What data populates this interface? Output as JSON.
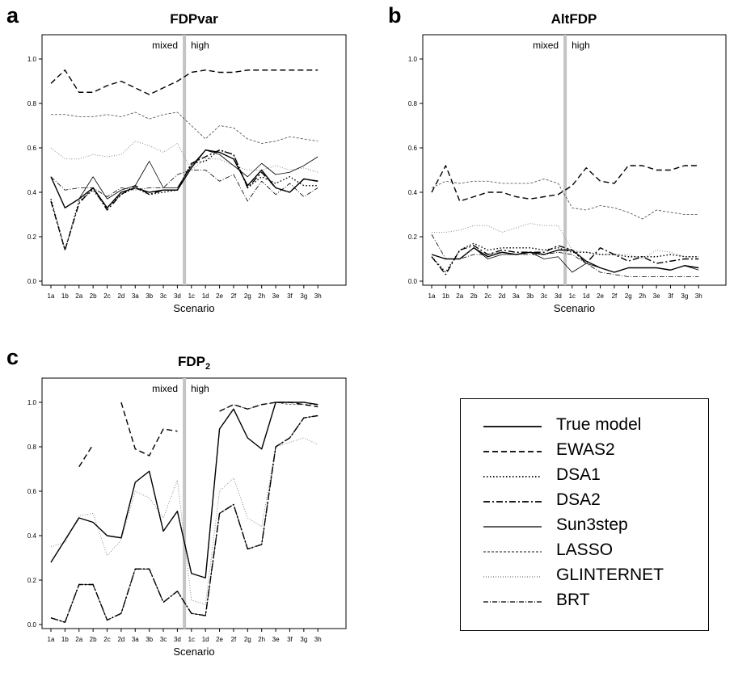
{
  "scenarios": [
    "1a",
    "1b",
    "2a",
    "2b",
    "2c",
    "2d",
    "3a",
    "3b",
    "3c",
    "3d",
    "1c",
    "1d",
    "2e",
    "2f",
    "2g",
    "2h",
    "3e",
    "3f",
    "3g",
    "3h"
  ],
  "legend": [
    {
      "key": "true_model",
      "label": "True model",
      "dash": "",
      "width": 1.4,
      "color": "#000000"
    },
    {
      "key": "ewas2",
      "label": "EWAS2",
      "dash": "7,4",
      "width": 1.4,
      "color": "#000000"
    },
    {
      "key": "dsa1",
      "label": "DSA1",
      "dash": "1.5,2.5",
      "width": 1.4,
      "color": "#000000"
    },
    {
      "key": "dsa2",
      "label": "DSA2",
      "dash": "8,3,2,3",
      "width": 1.4,
      "color": "#000000"
    },
    {
      "key": "sun3step",
      "label": "Sun3step",
      "dash": "",
      "width": 0.8,
      "color": "#000000"
    },
    {
      "key": "lasso",
      "label": "LASSO",
      "dash": "3,2",
      "width": 0.8,
      "color": "#444444"
    },
    {
      "key": "glinternet",
      "label": "GLINTERNET",
      "dash": "1,2",
      "width": 1.0,
      "color": "#8a8a8a"
    },
    {
      "key": "brt",
      "label": "BRT",
      "dash": "6,2,1,2",
      "width": 0.8,
      "color": "#000000"
    }
  ],
  "chart_data": [
    {
      "type": "line",
      "panel_letter": "a",
      "title": "FDPvar",
      "title_sub": "",
      "xlabel": "Scenario",
      "ylabel": "",
      "ylim": [
        0,
        1
      ],
      "yticks": [
        "0.0",
        "0.2",
        "0.4",
        "0.6",
        "0.8",
        "1.0"
      ],
      "divider_after": "3d",
      "region_labels": [
        "mixed",
        "high"
      ],
      "grid": false,
      "series": [
        {
          "name": "True model",
          "values": [
            0.47,
            0.33,
            0.37,
            0.42,
            0.33,
            0.4,
            0.42,
            0.4,
            0.41,
            0.41,
            0.51,
            0.59,
            0.58,
            0.55,
            0.43,
            0.5,
            0.42,
            0.4,
            0.46,
            0.45
          ]
        },
        {
          "name": "EWAS2",
          "values": [
            0.89,
            0.95,
            0.85,
            0.85,
            0.88,
            0.9,
            0.87,
            0.84,
            0.87,
            0.9,
            0.94,
            0.95,
            0.94,
            0.94,
            0.95,
            0.95,
            0.95,
            0.95,
            0.95,
            0.95
          ]
        },
        {
          "name": "DSA1",
          "values": [
            0.37,
            0.14,
            0.36,
            0.41,
            0.33,
            0.39,
            0.42,
            0.39,
            0.4,
            0.41,
            0.53,
            0.54,
            0.59,
            0.57,
            0.42,
            0.47,
            0.44,
            0.47,
            0.43,
            0.43
          ]
        },
        {
          "name": "DSA2",
          "values": [
            0.36,
            0.14,
            0.35,
            0.42,
            0.32,
            0.39,
            0.43,
            0.39,
            0.41,
            0.41,
            0.53,
            0.56,
            0.59,
            0.57,
            0.42,
            0.49,
            0.42,
            0.4,
            0.46,
            0.45
          ]
        },
        {
          "name": "Sun3step",
          "values": [
            0.47,
            0.33,
            0.37,
            0.47,
            0.37,
            0.41,
            0.43,
            0.54,
            0.42,
            0.42,
            0.52,
            0.59,
            0.57,
            0.52,
            0.47,
            0.53,
            0.48,
            0.49,
            0.52,
            0.56
          ]
        },
        {
          "name": "LASSO",
          "values": [
            0.75,
            0.75,
            0.74,
            0.74,
            0.75,
            0.74,
            0.76,
            0.73,
            0.75,
            0.76,
            0.7,
            0.64,
            0.7,
            0.69,
            0.64,
            0.62,
            0.63,
            0.65,
            0.64,
            0.63
          ]
        },
        {
          "name": "GLINTERNET",
          "values": [
            0.6,
            0.55,
            0.55,
            0.57,
            0.56,
            0.57,
            0.63,
            0.61,
            0.58,
            0.62,
            0.5,
            0.55,
            0.55,
            0.52,
            0.5,
            0.5,
            0.52,
            0.5,
            0.51,
            0.49
          ]
        },
        {
          "name": "BRT",
          "values": [
            0.47,
            0.41,
            0.42,
            0.42,
            0.38,
            0.42,
            0.41,
            0.42,
            0.42,
            0.48,
            0.5,
            0.5,
            0.45,
            0.48,
            0.36,
            0.45,
            0.39,
            0.44,
            0.38,
            0.42
          ]
        }
      ]
    },
    {
      "type": "line",
      "panel_letter": "b",
      "title": "AltFDP",
      "title_sub": "",
      "xlabel": "Scenario",
      "ylabel": "",
      "ylim": [
        0,
        1
      ],
      "yticks": [
        "0.0",
        "0.2",
        "0.4",
        "0.6",
        "0.8",
        "1.0"
      ],
      "divider_after": "3d",
      "region_labels": [
        "mixed",
        "high"
      ],
      "grid": false,
      "series": [
        {
          "name": "True model",
          "values": [
            0.12,
            0.1,
            0.1,
            0.15,
            0.11,
            0.13,
            0.12,
            0.13,
            0.12,
            0.14,
            0.14,
            0.09,
            0.06,
            0.04,
            0.06,
            0.06,
            0.06,
            0.05,
            0.07,
            0.06
          ]
        },
        {
          "name": "EWAS2",
          "values": [
            0.4,
            0.52,
            0.36,
            0.38,
            0.4,
            0.4,
            0.38,
            0.37,
            0.38,
            0.39,
            0.43,
            0.51,
            0.45,
            0.44,
            0.52,
            0.52,
            0.5,
            0.5,
            0.52,
            0.52
          ]
        },
        {
          "name": "DSA1",
          "values": [
            0.11,
            0.04,
            0.14,
            0.17,
            0.14,
            0.15,
            0.15,
            0.15,
            0.14,
            0.15,
            0.13,
            0.13,
            0.12,
            0.12,
            0.11,
            0.11,
            0.11,
            0.12,
            0.11,
            0.11
          ]
        },
        {
          "name": "DSA2",
          "values": [
            0.11,
            0.03,
            0.14,
            0.16,
            0.12,
            0.14,
            0.13,
            0.13,
            0.13,
            0.16,
            0.14,
            0.08,
            0.15,
            0.12,
            0.09,
            0.11,
            0.08,
            0.09,
            0.1,
            0.1
          ]
        },
        {
          "name": "Sun3step",
          "values": [
            0.12,
            0.1,
            0.1,
            0.15,
            0.1,
            0.12,
            0.12,
            0.13,
            0.1,
            0.11,
            0.04,
            0.08,
            0.06,
            0.04,
            0.06,
            0.06,
            0.06,
            0.05,
            0.07,
            0.05
          ]
        },
        {
          "name": "LASSO",
          "values": [
            0.42,
            0.45,
            0.44,
            0.45,
            0.45,
            0.44,
            0.44,
            0.44,
            0.46,
            0.44,
            0.33,
            0.32,
            0.34,
            0.33,
            0.31,
            0.28,
            0.32,
            0.31,
            0.3,
            0.3
          ]
        },
        {
          "name": "GLINTERNET",
          "values": [
            0.22,
            0.22,
            0.23,
            0.25,
            0.25,
            0.22,
            0.24,
            0.26,
            0.25,
            0.25,
            0.14,
            0.13,
            0.12,
            0.12,
            0.12,
            0.1,
            0.14,
            0.13,
            0.11,
            0.11
          ]
        },
        {
          "name": "BRT",
          "values": [
            0.21,
            0.1,
            0.1,
            0.12,
            0.12,
            0.13,
            0.12,
            0.12,
            0.12,
            0.13,
            0.12,
            0.08,
            0.04,
            0.03,
            0.02,
            0.02,
            0.02,
            0.02,
            0.02,
            0.02
          ]
        }
      ]
    },
    {
      "type": "line",
      "panel_letter": "c",
      "title": "FDP",
      "title_sub": "2",
      "xlabel": "Scenario",
      "ylabel": "",
      "ylim": [
        0,
        1
      ],
      "yticks": [
        "0.0",
        "0.2",
        "0.4",
        "0.6",
        "0.8",
        "1.0"
      ],
      "divider_after": "3d",
      "region_labels": [
        "mixed",
        "high"
      ],
      "grid": false,
      "series": [
        {
          "name": "True model",
          "values": [
            0.28,
            0.38,
            0.48,
            0.46,
            0.4,
            0.39,
            0.64,
            0.69,
            0.42,
            0.51,
            0.23,
            0.21,
            0.88,
            0.97,
            0.84,
            0.79,
            1.0,
            1.0,
            1.0,
            0.99
          ]
        },
        {
          "name": "EWAS2",
          "values": [
            null,
            null,
            0.71,
            0.81,
            null,
            1.0,
            0.79,
            0.76,
            0.88,
            0.87,
            null,
            null,
            0.96,
            0.99,
            0.97,
            0.99,
            1.0,
            1.0,
            0.99,
            0.98
          ]
        },
        {
          "name": "DSA1",
          "values": [
            0.03,
            0.01,
            0.18,
            0.18,
            0.02,
            0.05,
            0.25,
            0.25,
            0.1,
            0.15,
            0.05,
            0.04,
            0.5,
            0.54,
            0.34,
            0.36,
            0.8,
            0.84,
            0.93,
            0.94
          ]
        },
        {
          "name": "DSA2",
          "values": [
            0.03,
            0.01,
            0.18,
            0.18,
            0.02,
            0.05,
            0.25,
            0.25,
            0.1,
            0.15,
            0.05,
            0.04,
            0.5,
            0.54,
            0.34,
            0.36,
            0.8,
            0.84,
            0.93,
            0.94
          ]
        },
        {
          "name": "Sun3step",
          "values": [
            0.28,
            0.38,
            0.48,
            0.46,
            0.4,
            0.39,
            0.64,
            0.69,
            0.42,
            0.51,
            0.23,
            0.21,
            0.88,
            0.97,
            0.84,
            0.79,
            1.0,
            1.0,
            1.0,
            0.99
          ]
        },
        {
          "name": "LASSO",
          "values": [
            null,
            null,
            null,
            null,
            null,
            null,
            null,
            null,
            null,
            null,
            null,
            null,
            0.96,
            0.99,
            0.97,
            0.99,
            1.0,
            0.99,
            0.99,
            0.99
          ]
        },
        {
          "name": "GLINTERNET",
          "values": [
            0.35,
            0.37,
            0.49,
            0.5,
            0.31,
            0.38,
            0.6,
            0.57,
            0.48,
            0.65,
            0.11,
            0.09,
            0.6,
            0.66,
            0.48,
            0.44,
            0.8,
            0.82,
            0.84,
            0.81
          ]
        },
        {
          "name": "BRT",
          "values": [
            0.03,
            0.01,
            0.18,
            0.18,
            0.02,
            0.05,
            0.25,
            0.25,
            0.1,
            0.15,
            0.05,
            0.04,
            0.5,
            0.54,
            0.34,
            0.36,
            0.8,
            0.84,
            0.93,
            0.94
          ]
        }
      ]
    }
  ]
}
